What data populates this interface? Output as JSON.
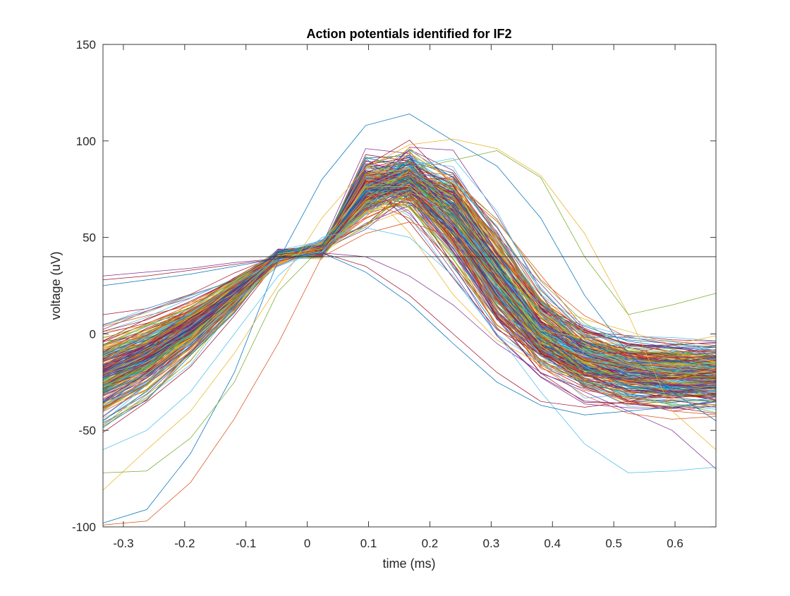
{
  "chart_data": {
    "type": "line",
    "title": "Action potentials identified for IF2",
    "xlabel": "time (ms)",
    "ylabel": "voltage (uV)",
    "xlim": [
      -0.3333,
      0.6667
    ],
    "ylim": [
      -100,
      150
    ],
    "x_ticks": [
      -0.3,
      -0.2,
      -0.1,
      0,
      0.1,
      0.2,
      0.3,
      0.4,
      0.5,
      0.6
    ],
    "x_tick_labels": [
      "-0.3",
      "-0.2",
      "-0.1",
      "0",
      "0.1",
      "0.2",
      "0.3",
      "0.4",
      "0.5",
      "0.6"
    ],
    "y_ticks": [
      -100,
      -50,
      0,
      50,
      100,
      150
    ],
    "y_tick_labels": [
      "-100",
      "-50",
      "0",
      "50",
      "100",
      "150"
    ],
    "threshold_line": 40,
    "grid": false,
    "legend": "none",
    "sample_times_ms": [
      -0.3333,
      -0.2619,
      -0.1905,
      -0.119,
      -0.0476,
      0.0238,
      0.0952,
      0.1667,
      0.2381,
      0.3095,
      0.381,
      0.4524,
      0.5238,
      0.5952,
      0.6667
    ],
    "num_waveforms_shown": 300,
    "series": [
      {
        "values": [
          -98,
          -91,
          -62,
          -20,
          38,
          80,
          108,
          114,
          100,
          87,
          60,
          20,
          -10,
          -30,
          -45
        ]
      },
      {
        "values": [
          -99,
          -97,
          -77,
          -44,
          -5,
          40,
          52,
          58,
          50,
          30,
          5,
          -20,
          -35,
          -40,
          -42
        ]
      },
      {
        "values": [
          -81,
          -60,
          -40,
          -10,
          25,
          60,
          86,
          98,
          101,
          96,
          82,
          52,
          10,
          -40,
          -60
        ]
      },
      {
        "values": [
          30,
          32,
          34,
          37,
          39,
          42,
          40,
          30,
          15,
          -5,
          -20,
          -30,
          -40,
          -50,
          -70
        ]
      },
      {
        "values": [
          -72,
          -71,
          -54,
          -25,
          22,
          45,
          70,
          85,
          90,
          95,
          81,
          40,
          10,
          15,
          21
        ]
      },
      {
        "values": [
          -60,
          -50,
          -30,
          0,
          30,
          50,
          55,
          50,
          30,
          0,
          -30,
          -57,
          -72,
          -71,
          -69
        ]
      },
      {
        "values": [
          28,
          30,
          33,
          36,
          39,
          42,
          35,
          20,
          0,
          -20,
          -35,
          -38,
          -35,
          -30,
          -28
        ]
      },
      {
        "values": [
          25,
          28,
          31,
          35,
          39,
          42,
          32,
          16,
          -5,
          -25,
          -37,
          -42,
          -40,
          -38,
          -35
        ]
      }
    ]
  }
}
